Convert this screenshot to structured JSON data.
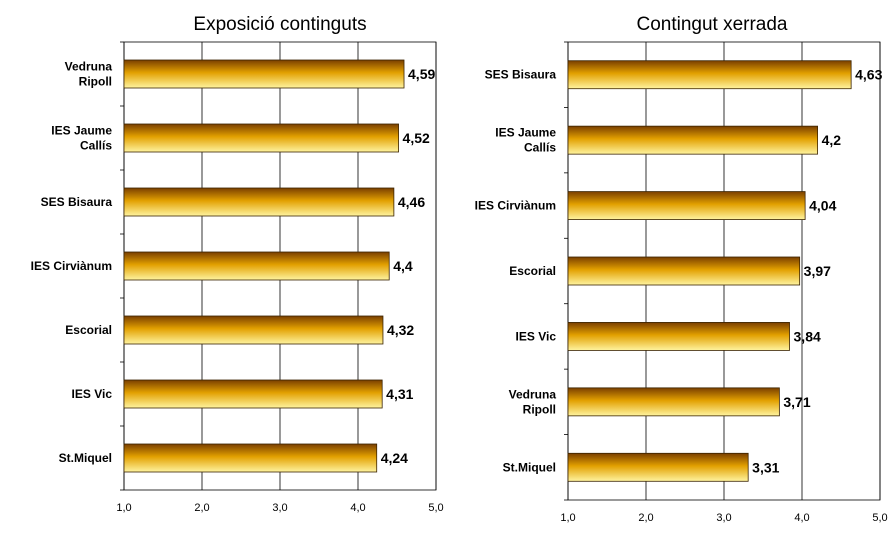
{
  "chart_data": [
    {
      "type": "bar",
      "orientation": "horizontal",
      "title": "Exposició continguts",
      "categories": [
        "Vedruna Ripoll",
        "IES Jaume Callís",
        "SES Bisaura",
        "IES Cirviànum",
        "Escorial",
        "IES Vic",
        "St.Miquel"
      ],
      "category_lines": [
        [
          "Vedruna",
          "Ripoll"
        ],
        [
          "IES Jaume",
          "Callís"
        ],
        [
          "SES Bisaura"
        ],
        [
          "IES Cirviànum"
        ],
        [
          "Escorial"
        ],
        [
          "IES Vic"
        ],
        [
          "St.Miquel"
        ]
      ],
      "values": [
        4.59,
        4.52,
        4.46,
        4.4,
        4.32,
        4.31,
        4.24
      ],
      "value_labels": [
        "4,59",
        "4,52",
        "4,46",
        "4,4",
        "4,32",
        "4,31",
        "4,24"
      ],
      "xlim": [
        1.0,
        5.0
      ],
      "ticks": [
        1.0,
        2.0,
        3.0,
        4.0,
        5.0
      ],
      "tick_labels": [
        "1,0",
        "2,0",
        "3,0",
        "4,0",
        "5,0"
      ],
      "grid": "vertical",
      "bar_color": "#e8a800"
    },
    {
      "type": "bar",
      "orientation": "horizontal",
      "title": "Contingut xerrada",
      "categories": [
        "SES Bisaura",
        "IES Jaume Callís",
        "IES Cirviànum",
        "Escorial",
        "IES Vic",
        "Vedruna Ripoll",
        "St.Miquel"
      ],
      "category_lines": [
        [
          "SES Bisaura"
        ],
        [
          "IES Jaume",
          "Callís"
        ],
        [
          "IES Cirviànum"
        ],
        [
          "Escorial"
        ],
        [
          "IES Vic"
        ],
        [
          "Vedruna",
          "Ripoll"
        ],
        [
          "St.Miquel"
        ]
      ],
      "values": [
        4.63,
        4.2,
        4.04,
        3.97,
        3.84,
        3.71,
        3.31
      ],
      "value_labels": [
        "4,63",
        "4,2",
        "4,04",
        "3,97",
        "3,84",
        "3,71",
        "3,31"
      ],
      "xlim": [
        1.0,
        5.0
      ],
      "ticks": [
        1.0,
        2.0,
        3.0,
        4.0,
        5.0
      ],
      "tick_labels": [
        "1,0",
        "2,0",
        "3,0",
        "4,0",
        "5,0"
      ],
      "grid": "vertical",
      "bar_color": "#e8a800"
    }
  ]
}
